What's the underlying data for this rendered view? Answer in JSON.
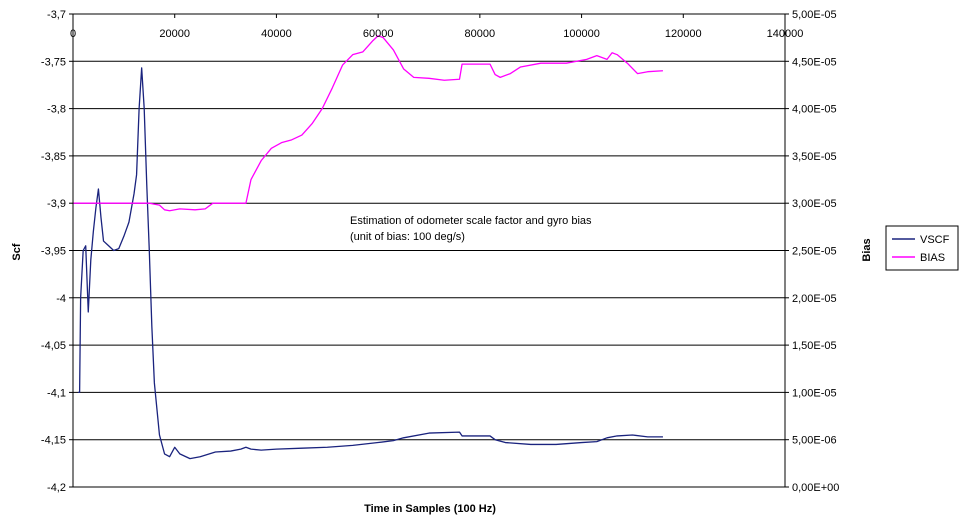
{
  "chart_data": {
    "type": "line",
    "xlabel": "Time in Samples (100 Hz)",
    "ylabel": "Scf",
    "y2label": "Bias",
    "xlim": [
      0,
      140000
    ],
    "ylim": [
      -4.2,
      -3.7
    ],
    "y2lim": [
      0,
      5e-05
    ],
    "x_ticks": [
      "0",
      "20000",
      "40000",
      "60000",
      "80000",
      "100000",
      "120000",
      "140000"
    ],
    "y_ticks": [
      "-3,7",
      "-3,75",
      "-3,8",
      "-3,85",
      "-3,9",
      "-3,95",
      "-4",
      "-4,05",
      "-4,1",
      "-4,15",
      "-4,2"
    ],
    "y2_ticks": [
      "5,00E-05",
      "4,50E-05",
      "4,00E-05",
      "3,50E-05",
      "3,00E-05",
      "2,50E-05",
      "2,00E-05",
      "1,50E-05",
      "1,00E-05",
      "5,00E-06",
      "0,00E+00"
    ],
    "grid": "horizontal",
    "legend": "right",
    "annotations": [
      "Estimation of odometer scale factor and gyro bias",
      "(unit of bias: 100 deg/s)"
    ],
    "series": [
      {
        "name": "VSCF",
        "axis": "left",
        "color": "#1a237e",
        "points": [
          [
            1000,
            -4.1
          ],
          [
            1300,
            -4.1
          ],
          [
            1500,
            -4.0
          ],
          [
            2000,
            -3.95
          ],
          [
            2500,
            -3.945
          ],
          [
            3000,
            -4.015
          ],
          [
            3500,
            -3.96
          ],
          [
            4000,
            -3.93
          ],
          [
            4500,
            -3.905
          ],
          [
            5000,
            -3.885
          ],
          [
            5500,
            -3.915
          ],
          [
            6000,
            -3.94
          ],
          [
            7000,
            -3.945
          ],
          [
            8000,
            -3.95
          ],
          [
            9000,
            -3.948
          ],
          [
            10000,
            -3.935
          ],
          [
            11000,
            -3.92
          ],
          [
            12000,
            -3.89
          ],
          [
            12500,
            -3.87
          ],
          [
            13000,
            -3.8
          ],
          [
            13500,
            -3.757
          ],
          [
            14000,
            -3.8
          ],
          [
            14500,
            -3.88
          ],
          [
            15000,
            -3.95
          ],
          [
            15500,
            -4.03
          ],
          [
            16000,
            -4.09
          ],
          [
            17000,
            -4.145
          ],
          [
            18000,
            -4.165
          ],
          [
            19000,
            -4.168
          ],
          [
            20000,
            -4.158
          ],
          [
            21000,
            -4.165
          ],
          [
            23000,
            -4.17
          ],
          [
            25000,
            -4.168
          ],
          [
            28000,
            -4.163
          ],
          [
            31000,
            -4.162
          ],
          [
            33000,
            -4.16
          ],
          [
            34000,
            -4.158
          ],
          [
            35000,
            -4.16
          ],
          [
            37000,
            -4.161
          ],
          [
            40000,
            -4.16
          ],
          [
            45000,
            -4.159
          ],
          [
            50000,
            -4.158
          ],
          [
            55000,
            -4.156
          ],
          [
            60000,
            -4.153
          ],
          [
            63000,
            -4.151
          ],
          [
            65000,
            -4.148
          ],
          [
            70000,
            -4.143
          ],
          [
            76000,
            -4.142
          ],
          [
            76500,
            -4.146
          ],
          [
            82000,
            -4.146
          ],
          [
            83000,
            -4.15
          ],
          [
            85000,
            -4.153
          ],
          [
            90000,
            -4.155
          ],
          [
            95000,
            -4.155
          ],
          [
            100000,
            -4.153
          ],
          [
            103000,
            -4.152
          ],
          [
            105000,
            -4.148
          ],
          [
            107000,
            -4.146
          ],
          [
            110000,
            -4.145
          ],
          [
            113000,
            -4.147
          ],
          [
            116000,
            -4.147
          ]
        ]
      },
      {
        "name": "BIAS",
        "axis": "right",
        "color": "#ff00ff",
        "points": [
          [
            0,
            3e-05
          ],
          [
            15000,
            3e-05
          ],
          [
            17000,
            2.98e-05
          ],
          [
            18000,
            2.93e-05
          ],
          [
            19000,
            2.92e-05
          ],
          [
            21000,
            2.94e-05
          ],
          [
            24000,
            2.93e-05
          ],
          [
            26000,
            2.94e-05
          ],
          [
            27500,
            3e-05
          ],
          [
            34000,
            3e-05
          ],
          [
            35000,
            3.25e-05
          ],
          [
            37000,
            3.45e-05
          ],
          [
            39000,
            3.58e-05
          ],
          [
            41000,
            3.64e-05
          ],
          [
            43000,
            3.67e-05
          ],
          [
            45000,
            3.72e-05
          ],
          [
            47000,
            3.84e-05
          ],
          [
            49000,
            4e-05
          ],
          [
            51000,
            4.22e-05
          ],
          [
            53000,
            4.46e-05
          ],
          [
            55000,
            4.57e-05
          ],
          [
            57000,
            4.6e-05
          ],
          [
            59000,
            4.72e-05
          ],
          [
            60000,
            4.77e-05
          ],
          [
            61000,
            4.75e-05
          ],
          [
            63000,
            4.62e-05
          ],
          [
            65000,
            4.42e-05
          ],
          [
            67000,
            4.33e-05
          ],
          [
            70000,
            4.32e-05
          ],
          [
            73000,
            4.3e-05
          ],
          [
            76000,
            4.31e-05
          ],
          [
            76500,
            4.47e-05
          ],
          [
            82000,
            4.47e-05
          ],
          [
            83000,
            4.36e-05
          ],
          [
            84000,
            4.33e-05
          ],
          [
            86000,
            4.37e-05
          ],
          [
            88000,
            4.44e-05
          ],
          [
            92000,
            4.48e-05
          ],
          [
            97000,
            4.48e-05
          ],
          [
            101000,
            4.52e-05
          ],
          [
            103000,
            4.56e-05
          ],
          [
            105000,
            4.52e-05
          ],
          [
            106000,
            4.59e-05
          ],
          [
            107000,
            4.57e-05
          ],
          [
            109000,
            4.48e-05
          ],
          [
            111000,
            4.37e-05
          ],
          [
            113000,
            4.39e-05
          ],
          [
            116000,
            4.4e-05
          ]
        ]
      }
    ]
  }
}
